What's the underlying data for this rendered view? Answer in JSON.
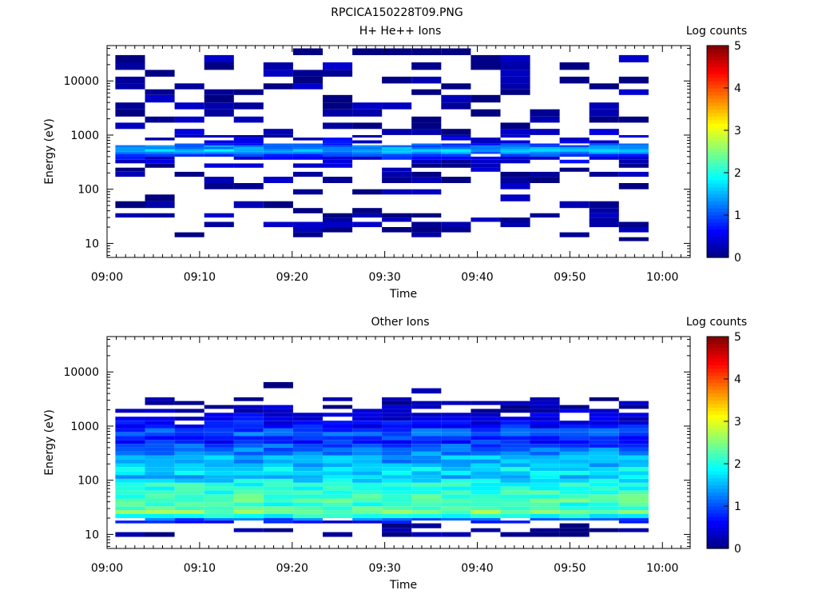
{
  "figure_title": "RPCICA150228T09.PNG",
  "chart_data": [
    {
      "type": "heatmap",
      "title": "H+ He++ Ions",
      "xlabel": "Time",
      "ylabel": "Energy (eV)",
      "y_scale": "log",
      "ylim": [
        5.5,
        45000
      ],
      "x_range": [
        "09:00",
        "10:03"
      ],
      "x_ticks": [
        "09:00",
        "09:10",
        "09:20",
        "09:30",
        "09:40",
        "09:50",
        "10:00"
      ],
      "y_ticks": [
        "10",
        "100",
        "1000",
        "10000"
      ],
      "colorbar": {
        "label": "Log counts",
        "range": [
          0,
          5
        ],
        "ticks": [
          "0",
          "1",
          "2",
          "3",
          "4",
          "5"
        ]
      },
      "time_bins": [
        "09:02.5",
        "09:05.7",
        "09:08.9",
        "09:12.1",
        "09:15.3",
        "09:18.5",
        "09:21.7",
        "09:24.9",
        "09:28.1",
        "09:31.3",
        "09:34.5",
        "09:37.7",
        "09:40.9",
        "09:44.1",
        "09:47.3",
        "09:50.5",
        "09:53.7",
        "09:56.9"
      ],
      "profile": {
        "energy_edges_eV": [
          9,
          11,
          13,
          16,
          20,
          25,
          30,
          36,
          45,
          60,
          80,
          100,
          130,
          170,
          210,
          250,
          300,
          350,
          400,
          450,
          500,
          550,
          600,
          650,
          700,
          800,
          900,
          1000,
          1300,
          1700,
          2200,
          3000,
          4000,
          5500,
          7000,
          9000,
          12000,
          16000,
          22000,
          30000,
          40000
        ],
        "base_log_counts": [
          0,
          0,
          0,
          0,
          0.15,
          0.15,
          0.1,
          0,
          0,
          0.1,
          0.1,
          0.1,
          0.1,
          0.15,
          0.15,
          0.25,
          0.4,
          0.6,
          0.95,
          1.3,
          1.55,
          1.4,
          1.2,
          0.9,
          0.6,
          0.4,
          0.3,
          0.2,
          0.15,
          0.1,
          0.1,
          0.1,
          0.1,
          0.1,
          0.1,
          0.1,
          0.1,
          0.1,
          0.1,
          0.1
        ],
        "presence_fraction": [
          0,
          0.1,
          0.15,
          0.3,
          0.45,
          0.35,
          0.3,
          0.25,
          0.3,
          0.3,
          0.3,
          0.35,
          0.35,
          0.35,
          0.4,
          0.45,
          0.6,
          0.9,
          0.95,
          1,
          1,
          1,
          0.95,
          0.8,
          0.5,
          0.45,
          0.4,
          0.4,
          0.35,
          0.35,
          0.35,
          0.35,
          0.35,
          0.35,
          0.35,
          0.35,
          0.35,
          0.35,
          0.35,
          0.3
        ]
      }
    },
    {
      "type": "heatmap",
      "title": "Other Ions",
      "xlabel": "Time",
      "ylabel": "Energy (eV)",
      "y_scale": "log",
      "ylim": [
        5.5,
        45000
      ],
      "x_range": [
        "09:00",
        "10:03"
      ],
      "x_ticks": [
        "09:00",
        "09:10",
        "09:20",
        "09:30",
        "09:40",
        "09:50",
        "10:00"
      ],
      "y_ticks": [
        "10",
        "100",
        "1000",
        "10000"
      ],
      "colorbar": {
        "label": "Log counts",
        "range": [
          0,
          5
        ],
        "ticks": [
          "0",
          "1",
          "2",
          "3",
          "4",
          "5"
        ]
      },
      "time_bins": [
        "09:02.5",
        "09:05.7",
        "09:08.9",
        "09:12.1",
        "09:15.3",
        "09:18.5",
        "09:21.7",
        "09:24.9",
        "09:28.1",
        "09:31.3",
        "09:34.5",
        "09:37.7",
        "09:40.9",
        "09:44.1",
        "09:47.3",
        "09:50.5",
        "09:53.7",
        "09:56.9"
      ],
      "profile": {
        "energy_edges_eV": [
          9,
          11,
          13,
          16,
          18,
          20,
          24,
          28,
          33,
          39,
          46,
          55,
          65,
          77,
          90,
          106,
          125,
          148,
          175,
          206,
          243,
          287,
          338,
          400,
          470,
          555,
          655,
          770,
          910,
          1070,
          1260,
          1490,
          1760,
          2080,
          2450,
          2900,
          3400,
          4000,
          5000,
          6500,
          8000
        ],
        "base_log_counts": [
          0,
          0,
          0,
          0.6,
          1.1,
          2.0,
          2.5,
          2.2,
          2.1,
          2.3,
          2.2,
          2.1,
          2.0,
          2.0,
          1.8,
          1.6,
          1.7,
          1.8,
          1.6,
          1.4,
          1.5,
          1.3,
          1.2,
          1.0,
          0.8,
          0.9,
          1.1,
          1.0,
          0.7,
          0.6,
          0.5,
          0.4,
          0.3,
          0.25,
          0.2,
          0.15,
          0.1,
          0.1,
          0.05,
          0.05
        ],
        "presence_fraction": [
          0.35,
          0.35,
          0.3,
          0.5,
          0.85,
          1,
          1,
          1,
          1,
          1,
          1,
          1,
          1,
          1,
          1,
          1,
          1,
          1,
          1,
          1,
          1,
          1,
          1,
          1,
          1,
          1,
          1,
          1,
          1,
          0.95,
          0.85,
          0.7,
          0.55,
          0.45,
          0.35,
          0.25,
          0.15,
          0.1,
          0.05,
          0.05
        ]
      }
    }
  ]
}
